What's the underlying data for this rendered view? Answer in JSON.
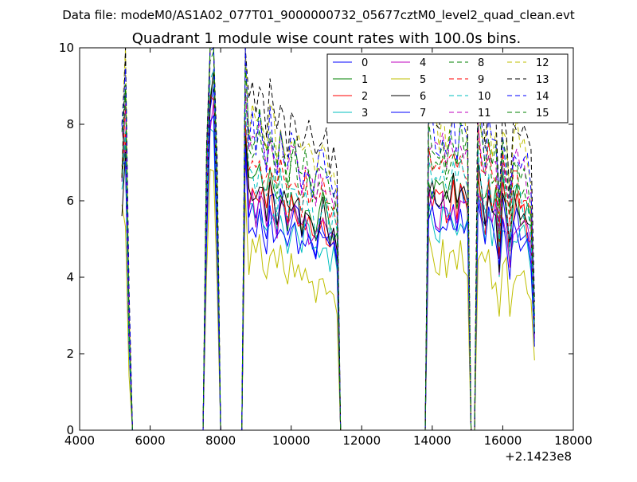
{
  "header": {
    "data_file": "Data file: modeM0/AS1A02_077T01_9000000732_05677cztM0_level2_quad_clean.evt"
  },
  "chart_data": {
    "type": "line",
    "title": "Quadrant 1 module wise count rates with 100.0s bins.",
    "xlabel": "",
    "ylabel": "",
    "x_offset_label": "+2.1423e8",
    "xlim": [
      4000,
      18000
    ],
    "ylim": [
      0,
      10
    ],
    "x_ticks": [
      4000,
      6000,
      8000,
      10000,
      12000,
      14000,
      16000,
      18000
    ],
    "x_tick_labels": [
      "4000",
      "6000",
      "8000",
      "10000",
      "12000",
      "14000",
      "16000",
      "18000"
    ],
    "y_ticks": [
      0,
      2,
      4,
      6,
      8,
      10
    ],
    "y_tick_labels": [
      "0",
      "2",
      "4",
      "6",
      "8",
      "10"
    ],
    "grid": false,
    "legend_position": "top-right",
    "legend_columns": 4,
    "x_start": 5200,
    "x_step": 100,
    "base_profile": [
      4.4,
      7.4,
      2.5,
      0,
      0,
      0,
      0,
      0,
      0,
      0,
      0,
      0,
      0,
      0,
      0,
      0,
      0,
      0,
      0,
      0,
      0,
      0,
      0,
      0,
      5.5,
      6.8,
      7.0,
      5.2,
      0,
      0,
      0,
      0,
      0,
      0,
      0,
      6.5,
      6.0,
      6.2,
      5.9,
      6.4,
      6.0,
      5.6,
      6.3,
      5.9,
      5.5,
      6.1,
      5.7,
      5.3,
      5.9,
      5.8,
      5.5,
      5.2,
      5.6,
      5.4,
      5.1,
      5.0,
      5.4,
      5.5,
      5.3,
      4.9,
      5.1,
      4.7,
      0,
      0,
      0,
      0,
      0,
      0,
      0,
      0,
      0,
      0,
      0,
      0,
      0,
      0,
      0,
      0,
      0,
      0,
      0,
      0,
      0,
      0,
      0,
      0,
      0,
      6.3,
      6.1,
      5.9,
      5.8,
      6.2,
      5.7,
      6.0,
      6.2,
      5.8,
      6.3,
      6.1,
      5.9,
      0,
      0,
      6.6,
      6.0,
      5.5,
      6.2,
      5.6,
      5.8,
      4.4,
      6.1,
      5.5,
      4.6,
      5.7,
      5.8,
      5.4,
      5.5,
      5.3,
      4.9,
      2.5
    ],
    "series": [
      {
        "name": "0",
        "color": "#0000ff",
        "dash": "solid",
        "scale": 0.97,
        "seed": 1
      },
      {
        "name": "1",
        "color": "#008000",
        "dash": "solid",
        "scale": 1.06,
        "seed": 2
      },
      {
        "name": "2",
        "color": "#ff0000",
        "dash": "solid",
        "scale": 1.0,
        "seed": 3
      },
      {
        "name": "3",
        "color": "#00bfbf",
        "dash": "solid",
        "scale": 0.92,
        "seed": 4
      },
      {
        "name": "4",
        "color": "#bf00bf",
        "dash": "solid",
        "scale": 0.96,
        "seed": 5
      },
      {
        "name": "5",
        "color": "#bfbf00",
        "dash": "solid",
        "scale": 0.74,
        "seed": 6
      },
      {
        "name": "6",
        "color": "#000000",
        "dash": "solid",
        "scale": 1.03,
        "seed": 7
      },
      {
        "name": "7",
        "color": "#0000ff",
        "dash": "solid",
        "scale": 0.9,
        "seed": 8
      },
      {
        "name": "8",
        "color": "#008000",
        "dash": "dashed",
        "scale": 1.18,
        "seed": 9
      },
      {
        "name": "9",
        "color": "#ff0000",
        "dash": "dashed",
        "scale": 1.15,
        "seed": 10
      },
      {
        "name": "10",
        "color": "#00bfbf",
        "dash": "dashed",
        "scale": 1.08,
        "seed": 11
      },
      {
        "name": "11",
        "color": "#bf00bf",
        "dash": "dashed",
        "scale": 1.22,
        "seed": 12
      },
      {
        "name": "12",
        "color": "#bfbf00",
        "dash": "dashed",
        "scale": 1.34,
        "seed": 13
      },
      {
        "name": "13",
        "color": "#000000",
        "dash": "dashed",
        "scale": 1.42,
        "seed": 14
      },
      {
        "name": "14",
        "color": "#0000ff",
        "dash": "dashed",
        "scale": 1.28,
        "seed": 15
      },
      {
        "name": "15",
        "color": "#008000",
        "dash": "dashed",
        "scale": 1.25,
        "seed": 16
      }
    ]
  }
}
